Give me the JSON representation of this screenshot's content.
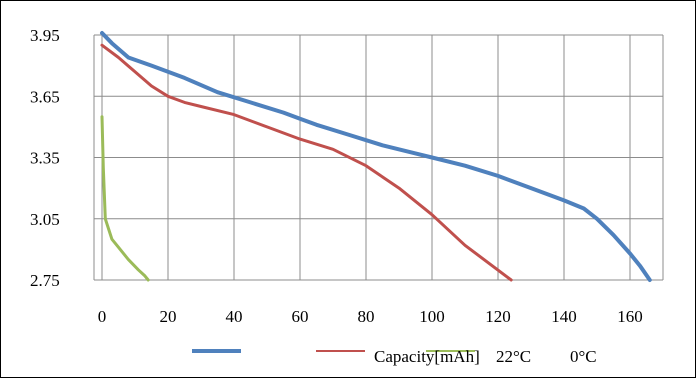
{
  "chart_data": {
    "type": "line",
    "title": "",
    "xlabel": "",
    "ylabel": "",
    "xlim": [
      0,
      170
    ],
    "ylim": [
      2.75,
      3.95
    ],
    "xticks": [
      "0",
      "20",
      "40",
      "60",
      "80",
      "100",
      "120",
      "140",
      "160"
    ],
    "yticks": [
      "3.95",
      "3.65",
      "3.35",
      "3.05",
      "2.75"
    ],
    "grid": "on",
    "legend_position": "bottom",
    "legend_text": [
      "Capacity[mAh]",
      "22°C",
      "0°C"
    ],
    "series": [
      {
        "color": "#4F81BD",
        "x": [
          0,
          3,
          8,
          15,
          25,
          35,
          45,
          55,
          60,
          65,
          75,
          85,
          95,
          100,
          110,
          120,
          130,
          140,
          146,
          150,
          155,
          160,
          163,
          166
        ],
        "y": [
          3.96,
          3.91,
          3.84,
          3.8,
          3.74,
          3.67,
          3.62,
          3.57,
          3.54,
          3.51,
          3.46,
          3.41,
          3.37,
          3.35,
          3.31,
          3.26,
          3.2,
          3.14,
          3.1,
          3.05,
          2.97,
          2.88,
          2.82,
          2.75
        ]
      },
      {
        "color": "#C0504D",
        "x": [
          0,
          5,
          10,
          15,
          20,
          25,
          30,
          40,
          50,
          60,
          70,
          80,
          90,
          100,
          110,
          124
        ],
        "y": [
          3.9,
          3.84,
          3.77,
          3.7,
          3.65,
          3.62,
          3.6,
          3.56,
          3.5,
          3.44,
          3.39,
          3.31,
          3.2,
          3.07,
          2.92,
          2.75
        ]
      },
      {
        "color": "#9BBB59",
        "x": [
          0,
          0.4,
          1,
          2,
          3,
          5,
          8,
          11,
          13,
          14
        ],
        "y": [
          3.55,
          3.3,
          3.05,
          3.0,
          2.95,
          2.91,
          2.85,
          2.8,
          2.77,
          2.75
        ]
      }
    ]
  }
}
